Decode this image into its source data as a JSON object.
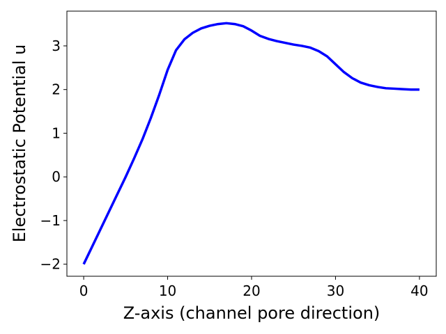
{
  "chart_data": {
    "type": "line",
    "x_label": "Z-axis (channel pore direction)",
    "y_label": "Electrostatic Potential u",
    "x": [
      0,
      1,
      2,
      3,
      4,
      5,
      6,
      7,
      8,
      9,
      10,
      11,
      12,
      13,
      14,
      15,
      16,
      17,
      18,
      19,
      20,
      21,
      22,
      23,
      24,
      25,
      26,
      27,
      28,
      29,
      30,
      31,
      32,
      33,
      34,
      35,
      36,
      37,
      38,
      39,
      40
    ],
    "series": [
      {
        "color": "#0000ff",
        "values": [
          -2,
          -1.6,
          -1.2,
          -0.8,
          -0.4,
          0,
          0.42,
          0.86,
          1.35,
          1.88,
          2.45,
          2.9,
          3.15,
          3.3,
          3.4,
          3.46,
          3.5,
          3.52,
          3.5,
          3.45,
          3.35,
          3.23,
          3.16,
          3.11,
          3.07,
          3.03,
          3.0,
          2.96,
          2.88,
          2.76,
          2.58,
          2.4,
          2.26,
          2.16,
          2.1,
          2.06,
          2.03,
          2.02,
          2.01,
          2.0,
          2.0
        ]
      }
    ],
    "xlim": [
      -2,
      42
    ],
    "ylim": [
      -2.276,
      3.796
    ],
    "xticks": [
      0,
      10,
      20,
      30,
      40
    ],
    "yticks": [
      {
        "value": -2,
        "label": "−2"
      },
      {
        "value": -1,
        "label": "−1"
      },
      0,
      1,
      2,
      3
    ],
    "grid": false
  }
}
